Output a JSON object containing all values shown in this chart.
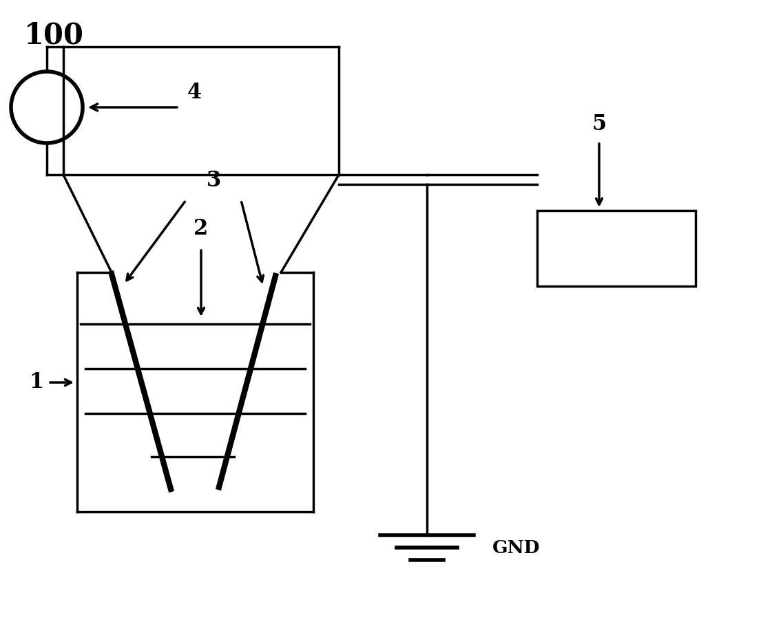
{
  "bg_color": "#ffffff",
  "line_color": "#000000",
  "lw": 2.5,
  "tlw": 6.0,
  "clw": 4.0,
  "figsize": [
    11.37,
    9.26
  ],
  "dpi": 100,
  "label_100": "100",
  "label_1": "1",
  "label_2": "2",
  "label_3": "3",
  "label_4": "4",
  "label_5": "5",
  "label_gnd": "GND",
  "fontsize_large": 30,
  "fontsize_label": 22,
  "fontsize_gnd": 19
}
